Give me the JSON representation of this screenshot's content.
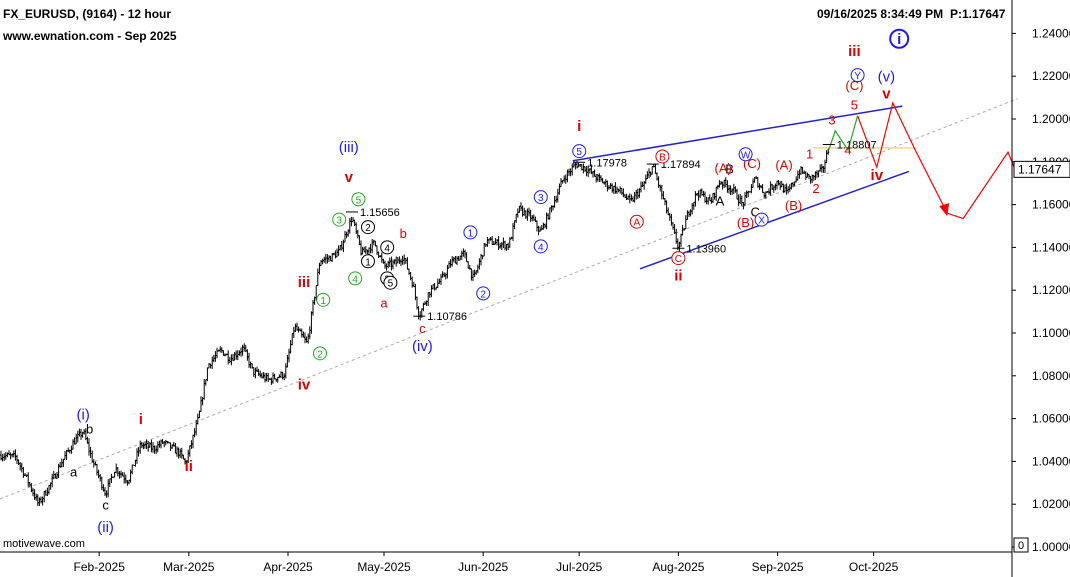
{
  "header": {
    "symbol_line": "FX_EURUSD, (9164) - 12 hour",
    "site_line": "www.ewnation.com  - Sep 2025",
    "timestamp": "09/16/2025 8:34:49 PM",
    "price_label": "P:1.17647"
  },
  "footer": {
    "watermark": "motivewave.com"
  },
  "current_price_label": "1.17647",
  "colors": {
    "candle": "#000000",
    "blue": "#1a1aff",
    "red": "#e00000",
    "green": "#22aa22",
    "channel": "#2222cc",
    "projection": "#ff0000",
    "midline": "#aaaaaa"
  },
  "chart_data": {
    "type": "candlestick",
    "symbol": "FX_EURUSD",
    "interval": "12 hour",
    "x_ticks": [
      "Feb-2025",
      "Mar-2025",
      "Apr-2025",
      "May-2025",
      "Jun-2025",
      "Jul-2025",
      "Aug-2025",
      "Sep-2025",
      "Oct-2025"
    ],
    "y_ticks": [
      "1.24000",
      "1.22000",
      "1.20000",
      "1.18000",
      "1.16000",
      "1.14000",
      "1.12000",
      "1.10000",
      "1.08000",
      "1.06000",
      "1.04000",
      "1.02000",
      "1.00000"
    ],
    "ylim": [
      1.0,
      1.245
    ],
    "last_price": 1.17647,
    "price_path": [
      [
        "2025-01-01",
        1.043
      ],
      [
        "2025-01-06",
        1.042
      ],
      [
        "2025-01-10",
        1.03
      ],
      [
        "2025-01-13",
        1.02
      ],
      [
        "2025-01-17",
        1.03
      ],
      [
        "2025-01-20",
        1.039
      ],
      [
        "2025-01-24",
        1.049
      ],
      [
        "2025-01-27",
        1.054
      ],
      [
        "2025-01-30",
        1.04
      ],
      [
        "2025-02-03",
        1.025
      ],
      [
        "2025-02-06",
        1.037
      ],
      [
        "2025-02-10",
        1.031
      ],
      [
        "2025-02-14",
        1.048
      ],
      [
        "2025-02-18",
        1.046
      ],
      [
        "2025-02-21",
        1.049
      ],
      [
        "2025-02-26",
        1.044
      ],
      [
        "2025-02-28",
        1.039
      ],
      [
        "2025-03-04",
        1.06
      ],
      [
        "2025-03-07",
        1.085
      ],
      [
        "2025-03-11",
        1.092
      ],
      [
        "2025-03-14",
        1.088
      ],
      [
        "2025-03-18",
        1.093
      ],
      [
        "2025-03-21",
        1.082
      ],
      [
        "2025-03-26",
        1.078
      ],
      [
        "2025-03-31",
        1.081
      ],
      [
        "2025-04-03",
        1.103
      ],
      [
        "2025-04-07",
        1.095
      ],
      [
        "2025-04-11",
        1.134
      ],
      [
        "2025-04-14",
        1.135
      ],
      [
        "2025-04-17",
        1.138
      ],
      [
        "2025-04-21",
        1.154
      ],
      [
        "2025-04-24",
        1.137
      ],
      [
        "2025-04-28",
        1.142
      ],
      [
        "2025-05-01",
        1.131
      ],
      [
        "2025-05-05",
        1.133
      ],
      [
        "2025-05-07",
        1.136
      ],
      [
        "2025-05-10",
        1.123
      ],
      [
        "2025-05-12",
        1.108
      ],
      [
        "2025-05-15",
        1.119
      ],
      [
        "2025-05-19",
        1.125
      ],
      [
        "2025-05-22",
        1.133
      ],
      [
        "2025-05-26",
        1.137
      ],
      [
        "2025-05-29",
        1.125
      ],
      [
        "2025-06-02",
        1.143
      ],
      [
        "2025-06-05",
        1.142
      ],
      [
        "2025-06-09",
        1.141
      ],
      [
        "2025-06-12",
        1.158
      ],
      [
        "2025-06-16",
        1.154
      ],
      [
        "2025-06-19",
        1.147
      ],
      [
        "2025-06-23",
        1.161
      ],
      [
        "2025-06-26",
        1.172
      ],
      [
        "2025-06-30",
        1.179
      ],
      [
        "2025-07-03",
        1.177
      ],
      [
        "2025-07-07",
        1.172
      ],
      [
        "2025-07-10",
        1.169
      ],
      [
        "2025-07-14",
        1.166
      ],
      [
        "2025-07-17",
        1.161
      ],
      [
        "2025-07-21",
        1.169
      ],
      [
        "2025-07-24",
        1.178
      ],
      [
        "2025-07-28",
        1.159
      ],
      [
        "2025-08-01",
        1.14
      ],
      [
        "2025-08-04",
        1.156
      ],
      [
        "2025-08-07",
        1.166
      ],
      [
        "2025-08-11",
        1.161
      ],
      [
        "2025-08-14",
        1.171
      ],
      [
        "2025-08-18",
        1.167
      ],
      [
        "2025-08-21",
        1.16
      ],
      [
        "2025-08-25",
        1.172
      ],
      [
        "2025-08-28",
        1.165
      ],
      [
        "2025-09-01",
        1.171
      ],
      [
        "2025-09-04",
        1.165
      ],
      [
        "2025-09-08",
        1.176
      ],
      [
        "2025-09-11",
        1.172
      ],
      [
        "2025-09-15",
        1.176
      ],
      [
        "2025-09-17",
        1.1865
      ]
    ],
    "price_notes": [
      {
        "date": "2025-04-21",
        "price": 1.15656,
        "text": "1.15656"
      },
      {
        "date": "2025-05-12",
        "price": 1.10786,
        "text": "1.10786"
      },
      {
        "date": "2025-07-01",
        "price": 1.17978,
        "text": "1.17978"
      },
      {
        "date": "2025-07-24",
        "price": 1.17894,
        "text": "1.17894"
      },
      {
        "date": "2025-08-01",
        "price": 1.1396,
        "text": "1.13960"
      },
      {
        "date": "2025-09-17",
        "price": 1.18807,
        "text": "1.18807"
      }
    ],
    "wave_labels": [
      {
        "text": "(i)",
        "date": "2025-01-27",
        "price": 1.0595,
        "color": "blue",
        "style": "roman"
      },
      {
        "text": "b",
        "date": "2025-01-29",
        "price": 1.053,
        "color": "black",
        "style": "plain"
      },
      {
        "text": "a",
        "date": "2025-01-24",
        "price": 1.033,
        "color": "black",
        "style": "plain"
      },
      {
        "text": "c",
        "date": "2025-02-03",
        "price": 1.0175,
        "color": "black",
        "style": "plain"
      },
      {
        "text": "(ii)",
        "date": "2025-02-03",
        "price": 1.007,
        "color": "blue",
        "style": "roman"
      },
      {
        "text": "i",
        "date": "2025-02-14",
        "price": 1.0575,
        "color": "red",
        "style": "roman"
      },
      {
        "text": "ii",
        "date": "2025-03-01",
        "price": 1.0355,
        "color": "red",
        "style": "roman"
      },
      {
        "text": "iii",
        "date": "2025-04-06",
        "price": 1.1215,
        "color": "red",
        "style": "roman"
      },
      {
        "text": "iv",
        "date": "2025-04-06",
        "price": 1.0735,
        "color": "red",
        "style": "roman"
      },
      {
        "text": "(iii)",
        "date": "2025-04-20",
        "price": 1.1845,
        "color": "blue",
        "style": "roman"
      },
      {
        "text": "v",
        "date": "2025-04-20",
        "price": 1.1705,
        "color": "red",
        "style": "roman"
      },
      {
        "text": "a",
        "date": "2025-05-01",
        "price": 1.112,
        "color": "red",
        "style": "plain"
      },
      {
        "text": "b",
        "date": "2025-05-07",
        "price": 1.1445,
        "color": "red",
        "style": "plain"
      },
      {
        "text": "c",
        "date": "2025-05-13",
        "price": 1.1,
        "color": "red",
        "style": "plain"
      },
      {
        "text": "(iv)",
        "date": "2025-05-13",
        "price": 1.0915,
        "color": "blue",
        "style": "roman"
      },
      {
        "text": "i",
        "date": "2025-07-01",
        "price": 1.1945,
        "color": "red",
        "style": "roman"
      },
      {
        "text": "ii",
        "date": "2025-08-01",
        "price": 1.1245,
        "color": "red",
        "style": "roman"
      },
      {
        "text": "A",
        "date": "2025-08-14",
        "price": 1.1595,
        "color": "black",
        "style": "plain"
      },
      {
        "text": "B",
        "date": "2025-08-17",
        "price": 1.1745,
        "color": "black",
        "style": "plain"
      },
      {
        "text": "C",
        "date": "2025-08-25",
        "price": 1.1545,
        "color": "black",
        "style": "plain"
      },
      {
        "text": "(A)",
        "date": "2025-08-15",
        "price": 1.175,
        "color": "red",
        "style": "plain"
      },
      {
        "text": "(B)",
        "date": "2025-08-22",
        "price": 1.1495,
        "color": "red",
        "style": "plain"
      },
      {
        "text": "(C)",
        "date": "2025-08-24",
        "price": 1.177,
        "color": "red",
        "style": "plain"
      },
      {
        "text": "(A)",
        "date": "2025-09-03",
        "price": 1.1765,
        "color": "red",
        "style": "plain"
      },
      {
        "text": "(B)",
        "date": "2025-09-06",
        "price": 1.1575,
        "color": "red",
        "style": "plain"
      },
      {
        "text": "1",
        "date": "2025-09-11",
        "price": 1.1815,
        "color": "red",
        "style": "plain"
      },
      {
        "text": "2",
        "date": "2025-09-13",
        "price": 1.1655,
        "color": "red",
        "style": "plain"
      },
      {
        "text": "3",
        "date": "2025-09-18",
        "price": 1.1975,
        "color": "red",
        "style": "plain"
      },
      {
        "text": "4",
        "date": "2025-09-23",
        "price": 1.1835,
        "color": "red",
        "style": "plain"
      },
      {
        "text": "5",
        "date": "2025-09-25",
        "price": 1.2045,
        "color": "red",
        "style": "plain"
      },
      {
        "text": "(C)",
        "date": "2025-09-25",
        "price": 1.2135,
        "color": "red",
        "style": "plain"
      },
      {
        "text": "iii",
        "date": "2025-09-25",
        "price": 1.2295,
        "color": "red",
        "style": "roman"
      },
      {
        "text": "(v)",
        "date": "2025-10-05",
        "price": 1.2175,
        "color": "blue",
        "style": "roman"
      },
      {
        "text": "v",
        "date": "2025-10-05",
        "price": 1.2095,
        "color": "red",
        "style": "roman"
      },
      {
        "text": "iv",
        "date": "2025-10-02",
        "price": 1.1715,
        "color": "red",
        "style": "roman"
      }
    ],
    "circled_labels": [
      {
        "text": "1",
        "date": "2025-04-12",
        "price": 1.1155,
        "color": "green"
      },
      {
        "text": "2",
        "date": "2025-04-11",
        "price": 1.0905,
        "color": "green"
      },
      {
        "text": "3",
        "date": "2025-04-17",
        "price": 1.153,
        "color": "green"
      },
      {
        "text": "4",
        "date": "2025-04-22",
        "price": 1.1255,
        "color": "green"
      },
      {
        "text": "5",
        "date": "2025-04-23",
        "price": 1.1625,
        "color": "green"
      },
      {
        "text": "2",
        "date": "2025-04-26",
        "price": 1.1495,
        "color": "black"
      },
      {
        "text": "1",
        "date": "2025-04-26",
        "price": 1.1335,
        "color": "black"
      },
      {
        "text": "4",
        "date": "2025-05-02",
        "price": 1.14,
        "color": "black"
      },
      {
        "text": "3",
        "date": "2025-05-02",
        "price": 1.1255,
        "color": "black"
      },
      {
        "text": "5",
        "date": "2025-05-03",
        "price": 1.1235,
        "color": "black"
      },
      {
        "text": "1",
        "date": "2025-05-28",
        "price": 1.147,
        "color": "blue"
      },
      {
        "text": "2",
        "date": "2025-06-01",
        "price": 1.1185,
        "color": "blue"
      },
      {
        "text": "3",
        "date": "2025-06-19",
        "price": 1.1635,
        "color": "blue"
      },
      {
        "text": "4",
        "date": "2025-06-19",
        "price": 1.1405,
        "color": "blue"
      },
      {
        "text": "5",
        "date": "2025-07-01",
        "price": 1.185,
        "color": "blue"
      },
      {
        "text": "A",
        "date": "2025-07-19",
        "price": 1.152,
        "color": "red"
      },
      {
        "text": "B",
        "date": "2025-07-27",
        "price": 1.1825,
        "color": "red"
      },
      {
        "text": "C",
        "date": "2025-08-01",
        "price": 1.135,
        "color": "red"
      },
      {
        "text": "W",
        "date": "2025-08-22",
        "price": 1.1835,
        "color": "blue"
      },
      {
        "text": "X",
        "date": "2025-08-27",
        "price": 1.153,
        "color": "blue"
      },
      {
        "text": "Y",
        "date": "2025-09-26",
        "price": 1.2205,
        "color": "blue"
      },
      {
        "text": "i",
        "date": "2025-10-09",
        "price": 1.2375,
        "color": "blue"
      }
    ],
    "channel": {
      "upper": [
        [
          "2025-06-29",
          1.1805
        ],
        [
          "2025-10-10",
          1.206
        ]
      ],
      "lower": [
        [
          "2025-07-20",
          1.13
        ],
        [
          "2025-10-12",
          1.1755
        ]
      ],
      "midline": [
        [
          "2025-01-01",
          1.0225
        ],
        [
          "2025-11-15",
          1.2095
        ]
      ],
      "projection_green": [
        [
          "2025-09-17",
          1.1855
        ],
        [
          "2025-09-19",
          1.1945
        ],
        [
          "2025-09-23",
          1.1855
        ],
        [
          "2025-09-26",
          1.2015
        ]
      ],
      "projection_red": [
        [
          "2025-09-26",
          1.2015
        ],
        [
          "2025-10-02",
          1.1775
        ],
        [
          "2025-10-07",
          1.2075
        ],
        [
          "2025-10-14",
          1.1855
        ],
        [
          "2025-10-24",
          1.156
        ],
        [
          "2025-10-29",
          1.1535
        ],
        [
          "2025-11-12",
          1.1845
        ],
        [
          "2025-11-15",
          1.1735
        ]
      ],
      "projection_arrow_tip": [
        "2025-10-24",
        1.156
      ]
    }
  }
}
